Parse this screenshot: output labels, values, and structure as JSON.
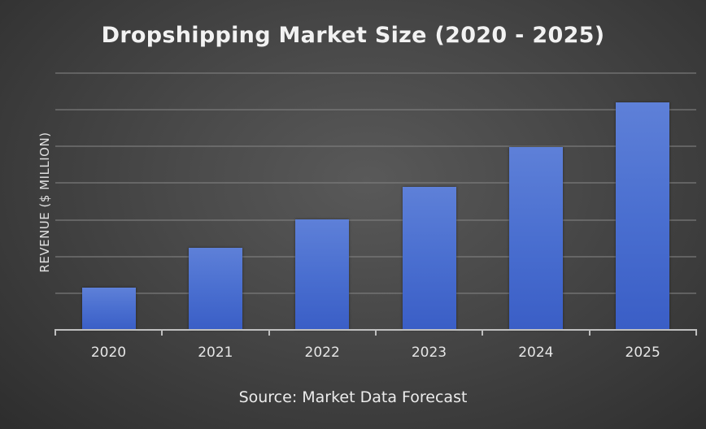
{
  "chart": {
    "title": "Dropshipping Market Size (2020 - 2025)",
    "ylabel": "REVENUE ($ MILLION)",
    "source": "Source: Market Data Forecast",
    "colors": {
      "background_center": "#595959",
      "background_edge": "#2c2c2c",
      "bar_top": "#5e80d8",
      "bar_bottom": "#3a5ec6",
      "gridline": "#6a6a6a",
      "axis": "#bfbfbf",
      "text": "#f2f2f2"
    }
  },
  "chart_data": {
    "type": "bar",
    "title": "Dropshipping Market Size (2020 - 2025)",
    "xlabel": "",
    "ylabel": "REVENUE ($ MILLION)",
    "categories": [
      "2020",
      "2021",
      "2022",
      "2023",
      "2024",
      "2025"
    ],
    "values": [
      1.15,
      2.24,
      3.02,
      3.9,
      4.99,
      6.21
    ],
    "value_units": "gridline intervals (no y-axis tick labels shown)",
    "ylim": [
      0,
      7
    ],
    "grid": true,
    "gridline_count": 7,
    "y_tick_labels_visible": false,
    "legend": null,
    "annotations": [
      "Source: Market Data Forecast"
    ]
  }
}
